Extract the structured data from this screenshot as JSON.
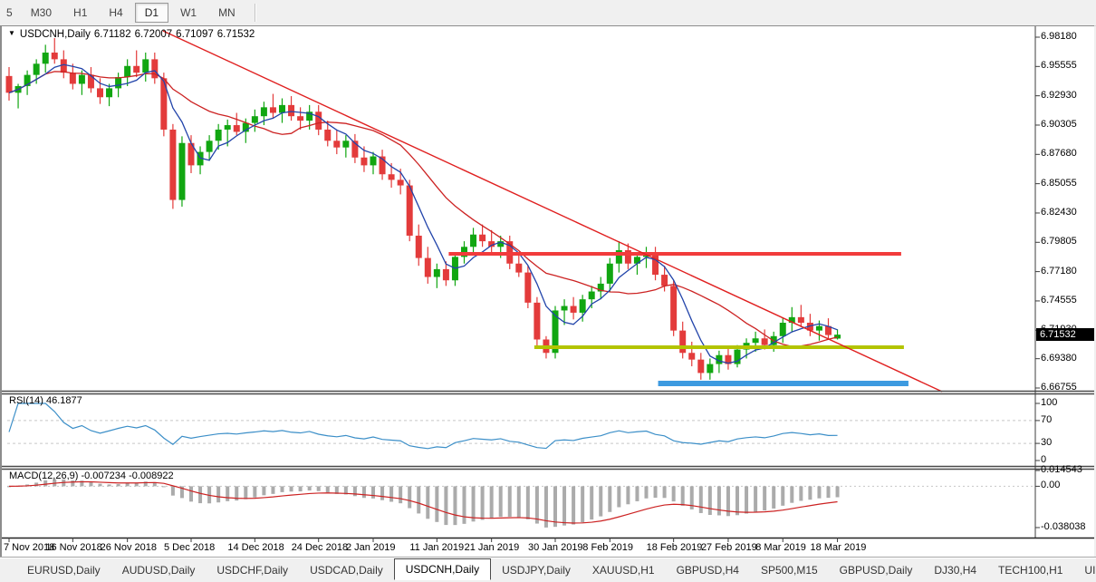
{
  "toolbar": {
    "timeframes": [
      "5",
      "M30",
      "H1",
      "H4",
      "D1",
      "W1",
      "MN"
    ],
    "active": "D1"
  },
  "chart": {
    "title": {
      "dropdown_icon": "▼",
      "symbol": "USDCNH,Daily",
      "open": "6.71182",
      "high": "6.72007",
      "low": "6.71097",
      "close": "6.71532"
    },
    "price_tag": "6.71532",
    "price_axis_labels": [
      "6.98180",
      "6.95555",
      "6.92930",
      "6.90305",
      "6.87680",
      "6.85055",
      "6.82430",
      "6.79805",
      "6.77180",
      "6.74555",
      "6.71930",
      "6.69380",
      "6.66755"
    ],
    "date_labels": [
      {
        "label": "7 Nov 2018",
        "i": 0
      },
      {
        "label": "16 Nov 2018",
        "i": 7
      },
      {
        "label": "26 Nov 2018",
        "i": 13
      },
      {
        "label": "5 Dec 2018",
        "i": 20
      },
      {
        "label": "14 Dec 2018",
        "i": 27
      },
      {
        "label": "24 Dec 2018",
        "i": 34
      },
      {
        "label": "2 Jan 2019",
        "i": 40
      },
      {
        "label": "11 Jan 2019",
        "i": 47
      },
      {
        "label": "21 Jan 2019",
        "i": 53
      },
      {
        "label": "30 Jan 2019",
        "i": 60
      },
      {
        "label": "8 Feb 2019",
        "i": 66
      },
      {
        "label": "18 Feb 2019",
        "i": 73
      },
      {
        "label": "27 Feb 2019",
        "i": 79
      },
      {
        "label": "8 Mar 2019",
        "i": 85
      },
      {
        "label": "18 Mar 2019",
        "i": 91
      }
    ]
  },
  "rsi_panel": {
    "label": "RSI(14) 46.1877",
    "levels": [
      {
        "v": 100,
        "label": "100"
      },
      {
        "v": 70,
        "label": "70"
      },
      {
        "v": 30,
        "label": "30"
      },
      {
        "v": 0,
        "label": "0"
      }
    ],
    "dashed_levels": [
      70,
      30
    ]
  },
  "macd_panel": {
    "label": "MACD(12,26,9) -0.007234 -0.008922",
    "scale": [
      {
        "v": 0.014543,
        "label": "0.014543"
      },
      {
        "v": 0.0,
        "label": "0.00"
      },
      {
        "v": -0.038038,
        "label": "-0.038038"
      }
    ]
  },
  "tabs": {
    "items": [
      "EURUSD,Daily",
      "AUDUSD,Daily",
      "USDCHF,Daily",
      "USDCAD,Daily",
      "USDCNH,Daily",
      "USDJPY,Daily",
      "XAUUSD,H1",
      "GBPUSD,H4",
      "SP500,M15",
      "GBPUSD,Daily",
      "DJ30,H4",
      "TECH100,H1",
      "UI"
    ],
    "active": "USDCNH,Daily",
    "scroll_left_icon": "◄",
    "scroll_right_icon": "►"
  },
  "colors": {
    "up": "#11a611",
    "down": "#e33b3b",
    "wick_up": "#11a611",
    "wick_down": "#e33b3b",
    "ma_fast": "#2244aa",
    "ma_slow": "#cc2222",
    "trend": "#e02020",
    "hline_red": "#f23b3b",
    "hline_yellow": "#b3c400",
    "hline_blue": "#3d9ae0",
    "rsi": "#3c8fc8",
    "macd_bar": "#ababab",
    "macd_signal": "#cc2222",
    "grid_dash": "#c6c6c6",
    "axis": "#3c3c3c"
  },
  "chart_data": {
    "type": "candlestick",
    "symbol": "USDCNH",
    "timeframe": "Daily",
    "title": "USDCNH,Daily",
    "ylim": [
      6.6652,
      6.9915
    ],
    "x_range_dates": [
      "7 Nov 2018",
      "18 Mar 2019"
    ],
    "candles_ohlc": [
      [
        6.947,
        6.955,
        6.925,
        6.932
      ],
      [
        6.932,
        6.94,
        6.918,
        6.938
      ],
      [
        6.938,
        6.952,
        6.93,
        6.948
      ],
      [
        6.948,
        6.962,
        6.94,
        6.958
      ],
      [
        6.958,
        6.975,
        6.95,
        6.968
      ],
      [
        6.968,
        6.981,
        6.958,
        6.962
      ],
      [
        6.962,
        6.97,
        6.945,
        6.95
      ],
      [
        6.95,
        6.958,
        6.935,
        6.94
      ],
      [
        6.94,
        6.952,
        6.93,
        6.948
      ],
      [
        6.948,
        6.955,
        6.932,
        6.936
      ],
      [
        6.936,
        6.945,
        6.922,
        6.928
      ],
      [
        6.928,
        6.94,
        6.92,
        6.936
      ],
      [
        6.936,
        6.95,
        6.928,
        6.946
      ],
      [
        6.946,
        6.962,
        6.938,
        6.956
      ],
      [
        6.956,
        6.97,
        6.946,
        6.95
      ],
      [
        6.95,
        6.968,
        6.942,
        6.962
      ],
      [
        6.962,
        6.968,
        6.94,
        6.945
      ],
      [
        6.945,
        6.95,
        6.893,
        6.899
      ],
      [
        6.899,
        6.904,
        6.828,
        6.836
      ],
      [
        6.836,
        6.893,
        6.83,
        6.887
      ],
      [
        6.887,
        6.894,
        6.86,
        6.867
      ],
      [
        6.867,
        6.884,
        6.859,
        6.879
      ],
      [
        6.879,
        6.894,
        6.871,
        6.889
      ],
      [
        6.889,
        6.904,
        6.881,
        6.899
      ],
      [
        6.899,
        6.908,
        6.884,
        6.903
      ],
      [
        6.903,
        6.914,
        6.894,
        6.897
      ],
      [
        6.897,
        6.909,
        6.887,
        6.905
      ],
      [
        6.905,
        6.917,
        6.897,
        6.911
      ],
      [
        6.911,
        6.924,
        6.903,
        6.919
      ],
      [
        6.919,
        6.931,
        6.909,
        6.914
      ],
      [
        6.914,
        6.927,
        6.905,
        6.921
      ],
      [
        6.921,
        6.929,
        6.907,
        6.911
      ],
      [
        6.911,
        6.919,
        6.899,
        6.907
      ],
      [
        6.907,
        6.921,
        6.899,
        6.915
      ],
      [
        6.915,
        6.921,
        6.894,
        6.899
      ],
      [
        6.899,
        6.907,
        6.884,
        6.889
      ],
      [
        6.889,
        6.899,
        6.877,
        6.883
      ],
      [
        6.883,
        6.894,
        6.874,
        6.889
      ],
      [
        6.889,
        6.895,
        6.869,
        6.874
      ],
      [
        6.874,
        6.884,
        6.861,
        6.867
      ],
      [
        6.867,
        6.879,
        6.859,
        6.875
      ],
      [
        6.875,
        6.881,
        6.854,
        6.859
      ],
      [
        6.859,
        6.869,
        6.847,
        6.854
      ],
      [
        6.854,
        6.864,
        6.841,
        6.849
      ],
      [
        6.849,
        6.854,
        6.799,
        6.804
      ],
      [
        6.804,
        6.814,
        6.777,
        6.784
      ],
      [
        6.784,
        6.794,
        6.761,
        6.767
      ],
      [
        6.767,
        6.779,
        6.757,
        6.774
      ],
      [
        6.774,
        6.781,
        6.759,
        6.764
      ],
      [
        6.764,
        6.789,
        6.759,
        6.785
      ],
      [
        6.785,
        6.799,
        6.779,
        6.794
      ],
      [
        6.794,
        6.811,
        6.787,
        6.805
      ],
      [
        6.805,
        6.814,
        6.794,
        6.799
      ],
      [
        6.799,
        6.809,
        6.789,
        6.794
      ],
      [
        6.794,
        6.804,
        6.784,
        6.799
      ],
      [
        6.799,
        6.804,
        6.774,
        6.779
      ],
      [
        6.779,
        6.789,
        6.767,
        6.771
      ],
      [
        6.771,
        6.777,
        6.739,
        6.744
      ],
      [
        6.744,
        6.749,
        6.704,
        6.711
      ],
      [
        6.711,
        6.714,
        6.694,
        6.699
      ],
      [
        6.699,
        6.741,
        6.694,
        6.737
      ],
      [
        6.737,
        6.747,
        6.724,
        6.741
      ],
      [
        6.741,
        6.749,
        6.729,
        6.735
      ],
      [
        6.735,
        6.751,
        6.727,
        6.747
      ],
      [
        6.747,
        6.759,
        6.739,
        6.754
      ],
      [
        6.754,
        6.767,
        6.747,
        6.761
      ],
      [
        6.761,
        6.784,
        6.754,
        6.779
      ],
      [
        6.779,
        6.799,
        6.771,
        6.791
      ],
      [
        6.791,
        6.797,
        6.774,
        6.779
      ],
      [
        6.779,
        6.789,
        6.769,
        6.785
      ],
      [
        6.785,
        6.794,
        6.775,
        6.789
      ],
      [
        6.789,
        6.794,
        6.764,
        6.769
      ],
      [
        6.769,
        6.777,
        6.754,
        6.759
      ],
      [
        6.759,
        6.764,
        6.714,
        6.719
      ],
      [
        6.719,
        6.727,
        6.694,
        6.699
      ],
      [
        6.699,
        6.709,
        6.687,
        6.693
      ],
      [
        6.693,
        6.699,
        6.675,
        6.681
      ],
      [
        6.681,
        6.694,
        6.675,
        6.689
      ],
      [
        6.689,
        6.701,
        6.681,
        6.697
      ],
      [
        6.697,
        6.704,
        6.684,
        6.689
      ],
      [
        6.689,
        6.706,
        6.686,
        6.702
      ],
      [
        6.702,
        6.712,
        6.694,
        6.708
      ],
      [
        6.708,
        6.718,
        6.7,
        6.712
      ],
      [
        6.712,
        6.72,
        6.702,
        6.706
      ],
      [
        6.706,
        6.718,
        6.7,
        6.714
      ],
      [
        6.714,
        6.73,
        6.708,
        6.726
      ],
      [
        6.726,
        6.74,
        6.718,
        6.731
      ],
      [
        6.731,
        6.742,
        6.722,
        6.726
      ],
      [
        6.726,
        6.734,
        6.714,
        6.719
      ],
      [
        6.719,
        6.728,
        6.71,
        6.723
      ],
      [
        6.723,
        6.73,
        6.711,
        6.715
      ],
      [
        6.71182,
        6.72007,
        6.71097,
        6.71532
      ]
    ],
    "moving_averages": [
      {
        "name": "fast",
        "period": 5
      },
      {
        "name": "slow",
        "period": 14
      }
    ],
    "overlays": {
      "trendline": {
        "i1": 16.9,
        "p1": 6.9875,
        "i2": 102.5,
        "p2": 6.6643
      },
      "hlines": [
        {
          "name": "resistance-red",
          "price": 6.7877,
          "i1": 48.3,
          "i2": 98.0,
          "width": 4,
          "colorKey": "hline_red"
        },
        {
          "name": "support-yellow",
          "price": 6.7041,
          "i1": 57.7,
          "i2": 98.3,
          "width": 4,
          "colorKey": "hline_yellow"
        },
        {
          "name": "support-blue",
          "price": 6.6716,
          "i1": 71.3,
          "i2": 98.8,
          "width": 6,
          "colorKey": "hline_blue"
        }
      ]
    },
    "indicators": {
      "rsi": {
        "period": 14,
        "current": "46.1877",
        "range": [
          0,
          100
        ]
      },
      "macd": {
        "fast": 12,
        "slow": 26,
        "signal": 9,
        "current": "-0.007234",
        "signal_current": "-0.008922",
        "range": [
          -0.038038,
          0.014543
        ]
      }
    }
  }
}
